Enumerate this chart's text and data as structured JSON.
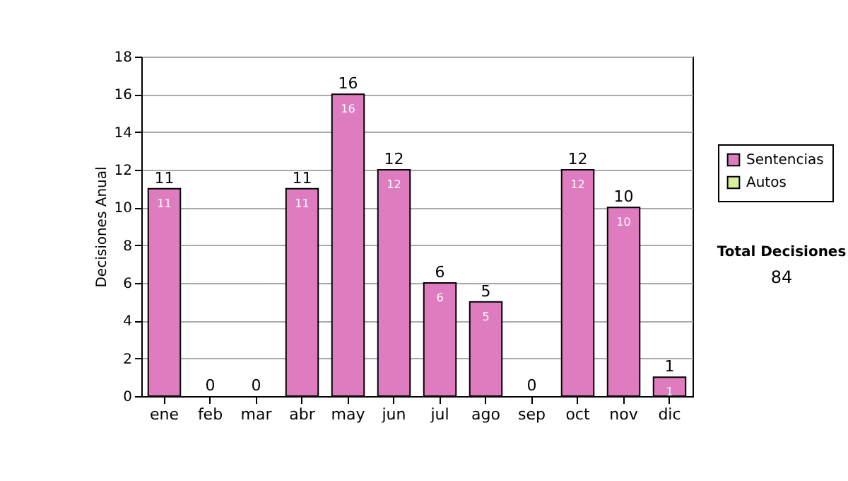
{
  "chart_data": {
    "type": "bar",
    "stacked": true,
    "ylabel": "Decisiones Anual",
    "categories": [
      "ene",
      "feb",
      "mar",
      "abr",
      "may",
      "jun",
      "jul",
      "ago",
      "sep",
      "oct",
      "nov",
      "dic"
    ],
    "series": [
      {
        "name": "Sentencias",
        "color": "#de7cbf",
        "values": [
          11,
          0,
          0,
          11,
          16,
          12,
          6,
          5,
          0,
          12,
          10,
          1
        ],
        "value_labels": [
          "11",
          null,
          null,
          "11",
          "16",
          "12",
          "6",
          "5",
          null,
          "12",
          "10",
          "1"
        ]
      },
      {
        "name": "Autos",
        "color": "#d8ef9e",
        "values": [
          0,
          0,
          0,
          0,
          0,
          0,
          0,
          0,
          0,
          0,
          0,
          0
        ]
      }
    ],
    "totals": [
      "11",
      "0",
      "0",
      "11",
      "16",
      "12",
      "6",
      "5",
      "0",
      "12",
      "10",
      "1"
    ],
    "ylim": [
      0,
      18
    ],
    "yticks": [
      0,
      2,
      4,
      6,
      8,
      10,
      12,
      14,
      16,
      18
    ],
    "grid": "y",
    "legend": "right",
    "annotations": [
      "Total Decisiones",
      "84"
    ]
  }
}
